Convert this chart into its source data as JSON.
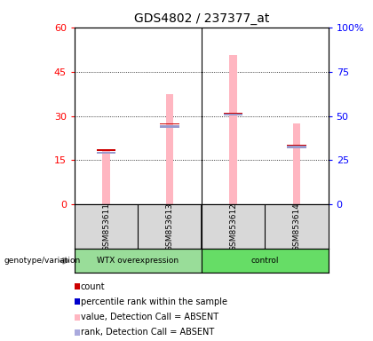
{
  "title": "GDS4802 / 237377_at",
  "samples": [
    "GSM853611",
    "GSM853613",
    "GSM853612",
    "GSM853614"
  ],
  "ylim_left": [
    0,
    60
  ],
  "ylim_right": [
    0,
    100
  ],
  "yticks_left": [
    0,
    15,
    30,
    45,
    60
  ],
  "ytick_labels_left": [
    "0",
    "15",
    "30",
    "45",
    "60"
  ],
  "yticks_right": [
    0,
    25,
    50,
    75,
    100
  ],
  "ytick_labels_right": [
    "0",
    "25",
    "50",
    "75",
    "100%"
  ],
  "pink_bars": [
    18.5,
    37.5,
    50.5,
    27.5
  ],
  "blue_vals": [
    17.5,
    26.5,
    30.5,
    19.5
  ],
  "red_vals": [
    18.2,
    27.2,
    30.8,
    20.0
  ],
  "pink_color": "#FFB6C1",
  "blue_color": "#9999CC",
  "red_color": "#CC0000",
  "group1_label": "WTX overexpression",
  "group2_label": "control",
  "group1_color": "#99DD99",
  "group2_color": "#66DD66",
  "sample_bg_color": "#D8D8D8",
  "legend_items": [
    {
      "label": "count",
      "color": "#CC0000",
      "marker_color": "#CC0000"
    },
    {
      "label": "percentile rank within the sample",
      "color": "#0000CC",
      "marker_color": "#0000CC"
    },
    {
      "label": "value, Detection Call = ABSENT",
      "color": "#FFB6C1",
      "marker_color": "#FFB6C1"
    },
    {
      "label": "rank, Detection Call = ABSENT",
      "color": "#AAAADD",
      "marker_color": "#AAAADD"
    }
  ]
}
